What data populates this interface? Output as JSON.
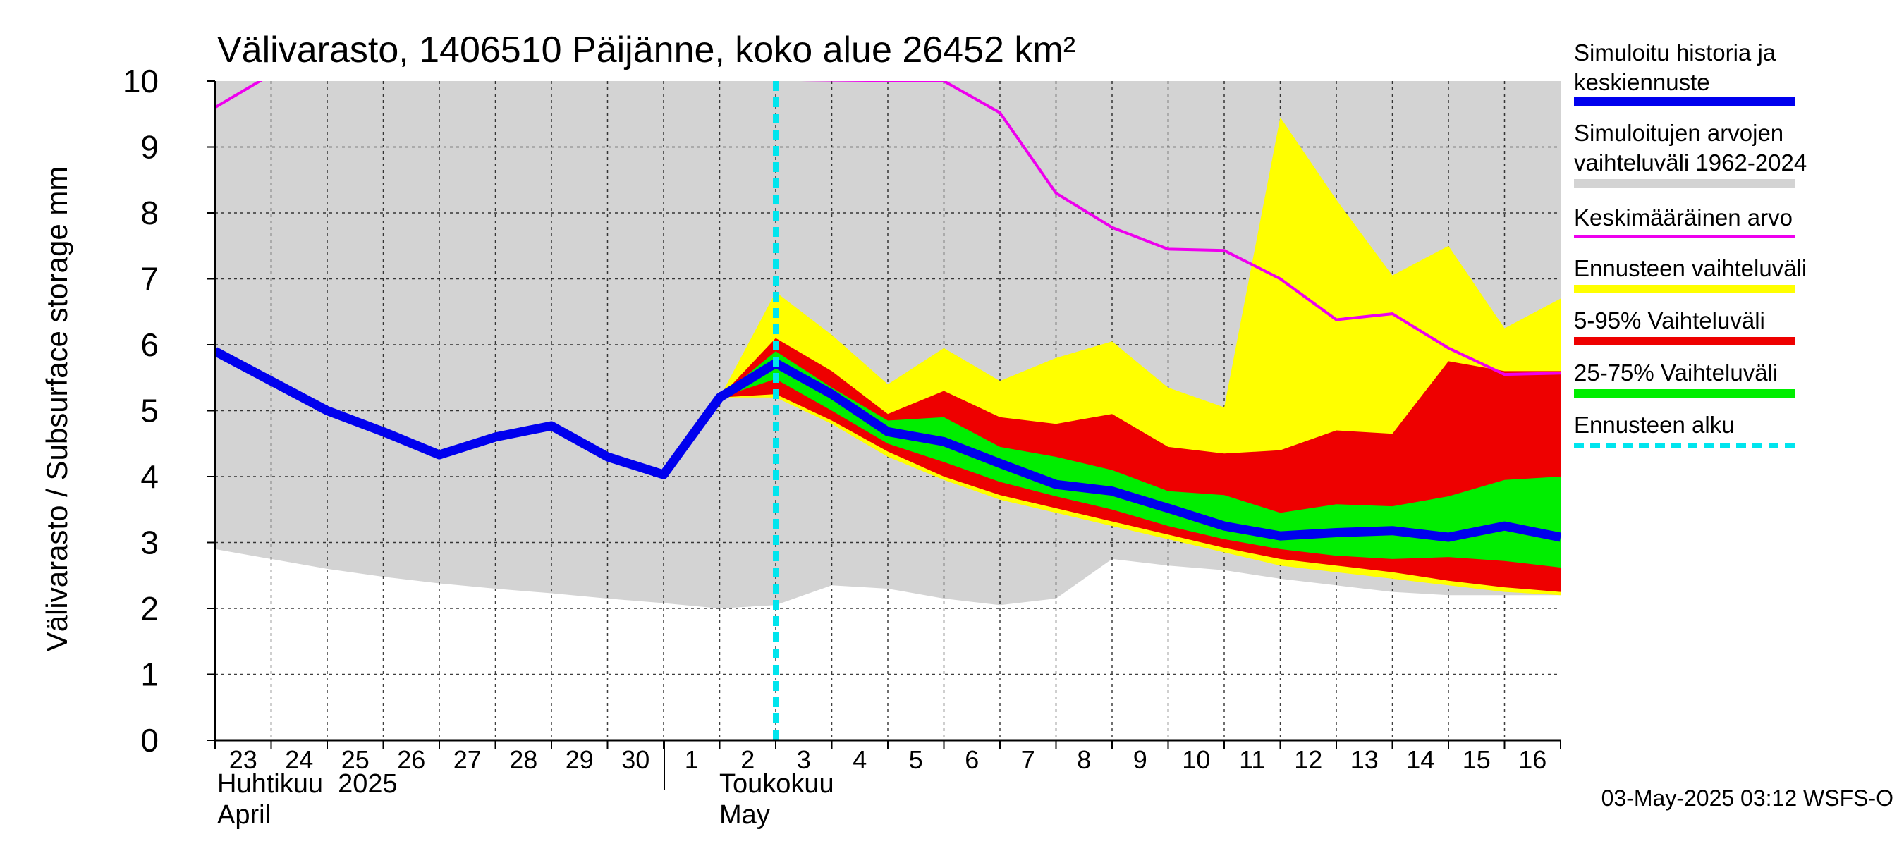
{
  "chart_data": {
    "type": "area",
    "title": "Välivarasto, 1406510 Päijänne, koko alue 26452 km²",
    "ylabel": "Välivarasto / Subsurface storage  mm",
    "ylim": [
      0,
      10
    ],
    "yticks": [
      "0",
      "1",
      "2",
      "3",
      "4",
      "5",
      "6",
      "7",
      "8",
      "9",
      "10"
    ],
    "xlim": [
      "2025-04-23",
      "2025-05-17"
    ],
    "x_day_labels": [
      "23",
      "24",
      "25",
      "26",
      "27",
      "28",
      "29",
      "30",
      "1",
      "2",
      "3",
      "4",
      "5",
      "6",
      "7",
      "8",
      "9",
      "10",
      "11",
      "12",
      "13",
      "14",
      "15",
      "16"
    ],
    "month_labels": [
      {
        "fi": "Huhtikuu  2025",
        "en": "April"
      },
      {
        "fi": "Toukokuu",
        "en": "May"
      }
    ],
    "forecast_start": "2025-05-03",
    "footer": "03-May-2025 03:12 WSFS-O",
    "legend": {
      "placement": "right",
      "items": [
        {
          "label": "Simuloitu historia ja keskiennuste",
          "color": "#0000ee",
          "style": "line"
        },
        {
          "label": "Simuloitujen arvojen vaihteluväli 1962-2024",
          "color": "#d3d3d3",
          "style": "band"
        },
        {
          "label": "Keskimääräinen arvo",
          "color": "#ee00ee",
          "style": "line"
        },
        {
          "label": "Ennusteen vaihteluväli",
          "color": "#ffff00",
          "style": "band"
        },
        {
          "label": "5-95% Vaihteluväli",
          "color": "#ee0000",
          "style": "band"
        },
        {
          "label": "25-75% Vaihteluväli",
          "color": "#00ee00",
          "style": "band"
        },
        {
          "label": "Ennusteen alku",
          "color": "#00e5ee",
          "style": "dashed"
        }
      ]
    },
    "hist_range": {
      "x": [
        "2025-04-23",
        "2025-04-24",
        "2025-04-25",
        "2025-04-26",
        "2025-04-27",
        "2025-04-28",
        "2025-04-29",
        "2025-04-30",
        "2025-05-01",
        "2025-05-02",
        "2025-05-03",
        "2025-05-04",
        "2025-05-05",
        "2025-05-06",
        "2025-05-07",
        "2025-05-08",
        "2025-05-09",
        "2025-05-10",
        "2025-05-11",
        "2025-05-12",
        "2025-05-13",
        "2025-05-14",
        "2025-05-15",
        "2025-05-16",
        "2025-05-17"
      ],
      "low": [
        2.9,
        2.75,
        2.6,
        2.48,
        2.38,
        2.3,
        2.23,
        2.15,
        2.08,
        2.0,
        2.05,
        2.35,
        2.3,
        2.15,
        2.05,
        2.15,
        2.75,
        2.65,
        2.58,
        2.45,
        2.35,
        2.25,
        2.2,
        2.2,
        2.2
      ],
      "high": [
        10,
        10,
        10,
        10,
        10,
        10,
        10,
        10,
        10,
        10,
        10,
        10,
        10,
        10,
        10,
        10,
        10,
        10,
        10,
        10,
        10,
        10,
        10,
        10,
        10
      ]
    },
    "forecast_range": {
      "x": [
        "2025-05-02",
        "2025-05-03",
        "2025-05-04",
        "2025-05-05",
        "2025-05-06",
        "2025-05-07",
        "2025-05-08",
        "2025-05-09",
        "2025-05-10",
        "2025-05-11",
        "2025-05-12",
        "2025-05-13",
        "2025-05-14",
        "2025-05-15",
        "2025-05-16",
        "2025-05-17"
      ],
      "low": [
        5.2,
        5.2,
        4.8,
        4.3,
        3.95,
        3.65,
        3.45,
        3.25,
        3.05,
        2.85,
        2.65,
        2.55,
        2.45,
        2.35,
        2.25,
        2.2
      ],
      "high": [
        5.2,
        6.8,
        6.15,
        5.4,
        5.95,
        5.45,
        5.8,
        6.05,
        5.35,
        5.05,
        9.45,
        8.2,
        7.05,
        7.5,
        6.25,
        6.7
      ]
    },
    "p5_95": {
      "x": [
        "2025-05-02",
        "2025-05-03",
        "2025-05-04",
        "2025-05-05",
        "2025-05-06",
        "2025-05-07",
        "2025-05-08",
        "2025-05-09",
        "2025-05-10",
        "2025-05-11",
        "2025-05-12",
        "2025-05-13",
        "2025-05-14",
        "2025-05-15",
        "2025-05-16",
        "2025-05-17"
      ],
      "low": [
        5.2,
        5.25,
        4.85,
        4.38,
        4.0,
        3.72,
        3.52,
        3.32,
        3.12,
        2.92,
        2.75,
        2.65,
        2.55,
        2.42,
        2.32,
        2.25
      ],
      "high": [
        5.2,
        6.1,
        5.6,
        4.95,
        5.3,
        4.9,
        4.8,
        4.95,
        4.45,
        4.35,
        4.4,
        4.7,
        4.65,
        5.75,
        5.6,
        5.6
      ]
    },
    "p25_75": {
      "x": [
        "2025-05-02",
        "2025-05-03",
        "2025-05-04",
        "2025-05-05",
        "2025-05-06",
        "2025-05-07",
        "2025-05-08",
        "2025-05-09",
        "2025-05-10",
        "2025-05-11",
        "2025-05-12",
        "2025-05-13",
        "2025-05-14",
        "2025-05-15",
        "2025-05-16",
        "2025-05-17"
      ],
      "low": [
        5.2,
        5.48,
        5.0,
        4.5,
        4.22,
        3.92,
        3.7,
        3.5,
        3.25,
        3.05,
        2.9,
        2.8,
        2.75,
        2.78,
        2.72,
        2.62
      ],
      "high": [
        5.2,
        5.9,
        5.35,
        4.85,
        4.9,
        4.45,
        4.3,
        4.1,
        3.78,
        3.72,
        3.45,
        3.58,
        3.55,
        3.7,
        3.95,
        4.0
      ]
    },
    "series": [
      {
        "name": "Simuloitu historia ja keskiennuste",
        "color": "#0000ee",
        "x": [
          "2025-04-23",
          "2025-04-24",
          "2025-04-25",
          "2025-04-26",
          "2025-04-27",
          "2025-04-28",
          "2025-04-29",
          "2025-04-30",
          "2025-05-01",
          "2025-05-02",
          "2025-05-03",
          "2025-05-04",
          "2025-05-05",
          "2025-05-06",
          "2025-05-07",
          "2025-05-08",
          "2025-05-09",
          "2025-05-10",
          "2025-05-11",
          "2025-05-12",
          "2025-05-13",
          "2025-05-14",
          "2025-05-15",
          "2025-05-16",
          "2025-05-17"
        ],
        "y": [
          5.9,
          5.45,
          5.0,
          4.68,
          4.33,
          4.6,
          4.77,
          4.3,
          4.03,
          5.2,
          5.72,
          5.25,
          4.68,
          4.53,
          4.2,
          3.88,
          3.78,
          3.52,
          3.25,
          3.1,
          3.15,
          3.18,
          3.08,
          3.25,
          3.08
        ]
      },
      {
        "name": "Keskimääräinen arvo",
        "color": "#ee00ee",
        "x": [
          "2025-04-23",
          "2025-04-24",
          "2025-05-06",
          "2025-05-07",
          "2025-05-08",
          "2025-05-09",
          "2025-05-10",
          "2025-05-11",
          "2025-05-12",
          "2025-05-13",
          "2025-05-14",
          "2025-05-15",
          "2025-05-16",
          "2025-05-17"
        ],
        "y": [
          9.6,
          10.1,
          10.0,
          9.52,
          8.3,
          7.78,
          7.45,
          7.43,
          7.0,
          6.38,
          6.47,
          5.95,
          5.55,
          5.57
        ]
      }
    ]
  }
}
